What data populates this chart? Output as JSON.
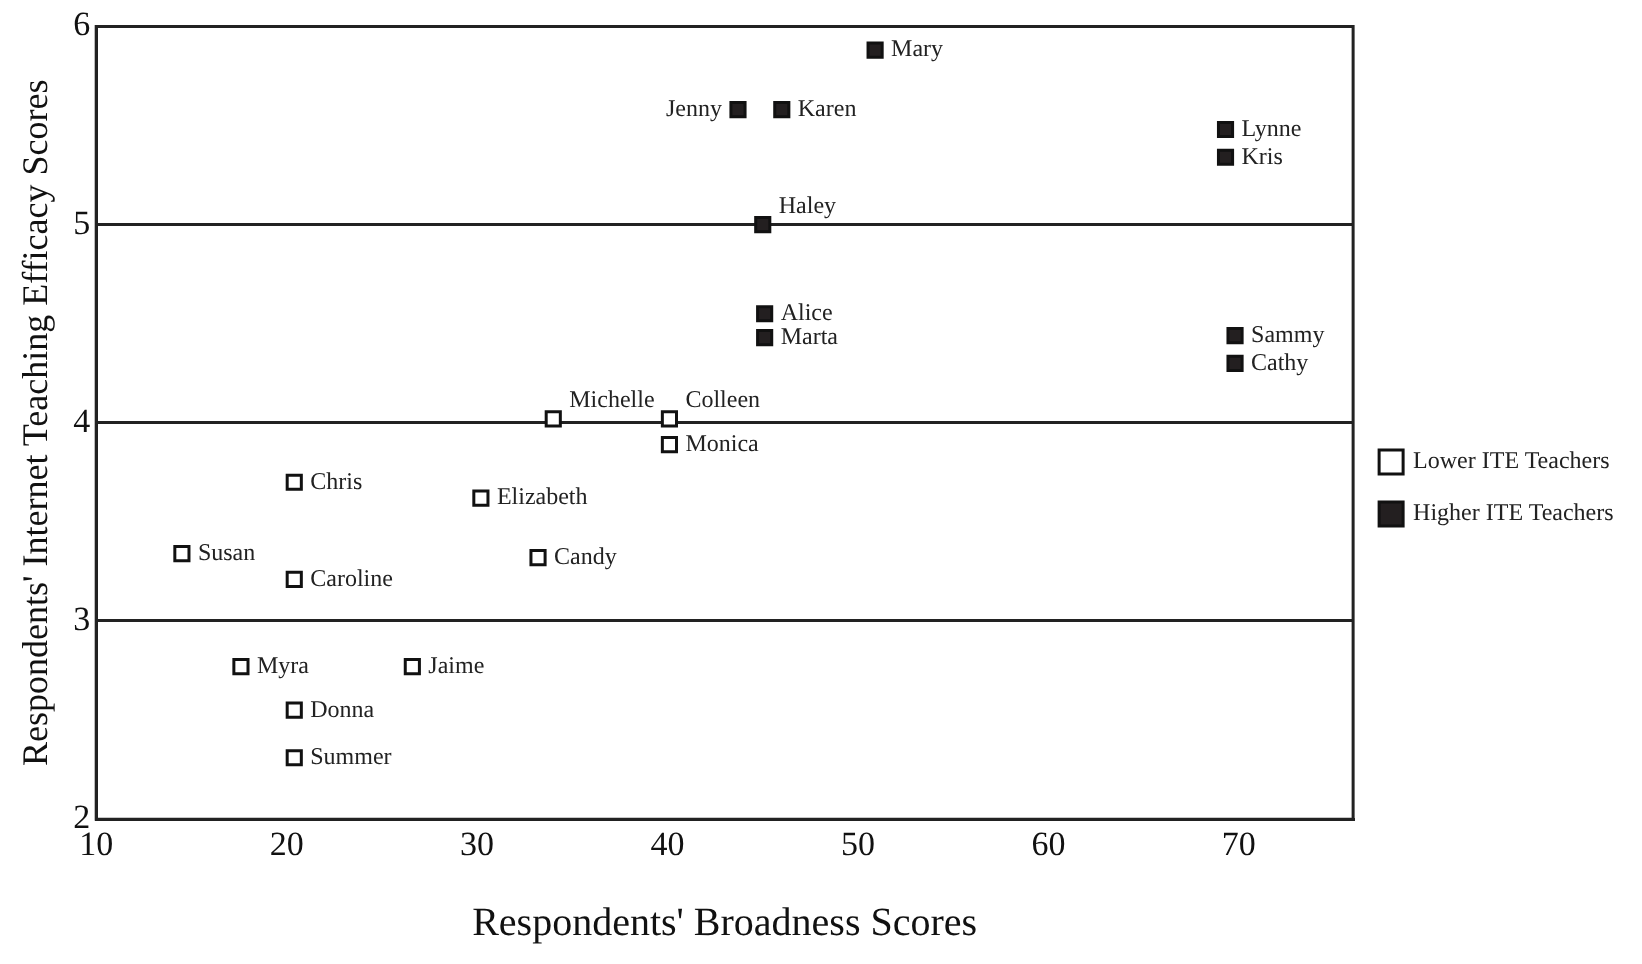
{
  "chart_data": {
    "type": "scatter",
    "xlabel": "Respondents' Broadness Scores",
    "ylabel": "Respondents' Internet Teaching Efficacy Scores",
    "xlim": [
      10,
      76
    ],
    "xticks": [
      10,
      20,
      30,
      40,
      50,
      60,
      70
    ],
    "ylim": [
      2,
      6
    ],
    "yticks": [
      2,
      3,
      4,
      5,
      6
    ],
    "grid": "y",
    "legend": "right",
    "marker": "square",
    "series": [
      {
        "name": "Lower ITE Teachers",
        "color": "#ffffff",
        "x": [
          34.0,
          40.1,
          40.1,
          20.4,
          30.2,
          14.5,
          20.4,
          33.2,
          17.6,
          26.6,
          20.4,
          20.4
        ],
        "values": [
          4.02,
          4.02,
          3.89,
          3.7,
          3.62,
          3.34,
          3.21,
          3.32,
          2.77,
          2.77,
          2.55,
          2.31
        ]
      },
      {
        "name": "Higher ITE Teachers",
        "color": "#231f20",
        "x": [
          50.9,
          43.7,
          46.0,
          69.3,
          69.3,
          45.0,
          45.1,
          45.1,
          69.8,
          69.8
        ],
        "values": [
          5.88,
          5.58,
          5.58,
          5.48,
          5.34,
          5.0,
          4.55,
          4.43,
          4.44,
          4.3
        ]
      }
    ],
    "annotations": [
      {
        "text": "Michelle",
        "x": 34.0,
        "y": 4.02
      },
      {
        "text": "Colleen",
        "x": 40.1,
        "y": 4.02
      },
      {
        "text": "Monica",
        "x": 40.1,
        "y": 3.89
      },
      {
        "text": "Chris",
        "x": 20.4,
        "y": 3.7
      },
      {
        "text": "Elizabeth",
        "x": 30.2,
        "y": 3.62
      },
      {
        "text": "Susan",
        "x": 14.5,
        "y": 3.34
      },
      {
        "text": "Caroline",
        "x": 20.4,
        "y": 3.21
      },
      {
        "text": "Candy",
        "x": 33.2,
        "y": 3.32
      },
      {
        "text": "Myra",
        "x": 17.6,
        "y": 2.77
      },
      {
        "text": "Jaime",
        "x": 26.6,
        "y": 2.77
      },
      {
        "text": "Donna",
        "x": 20.4,
        "y": 2.55
      },
      {
        "text": "Summer",
        "x": 20.4,
        "y": 2.31
      },
      {
        "text": "Mary",
        "x": 50.9,
        "y": 5.88
      },
      {
        "text": "Jenny",
        "x": 43.7,
        "y": 5.58
      },
      {
        "text": "Karen",
        "x": 46.0,
        "y": 5.58
      },
      {
        "text": "Lynne",
        "x": 69.3,
        "y": 5.48
      },
      {
        "text": "Kris",
        "x": 69.3,
        "y": 5.34
      },
      {
        "text": "Haley",
        "x": 45.0,
        "y": 5.0
      },
      {
        "text": "Alice",
        "x": 45.1,
        "y": 4.55
      },
      {
        "text": "Marta",
        "x": 45.1,
        "y": 4.43
      },
      {
        "text": "Sammy",
        "x": 69.8,
        "y": 4.44
      },
      {
        "text": "Cathy",
        "x": 69.8,
        "y": 4.3
      }
    ]
  }
}
